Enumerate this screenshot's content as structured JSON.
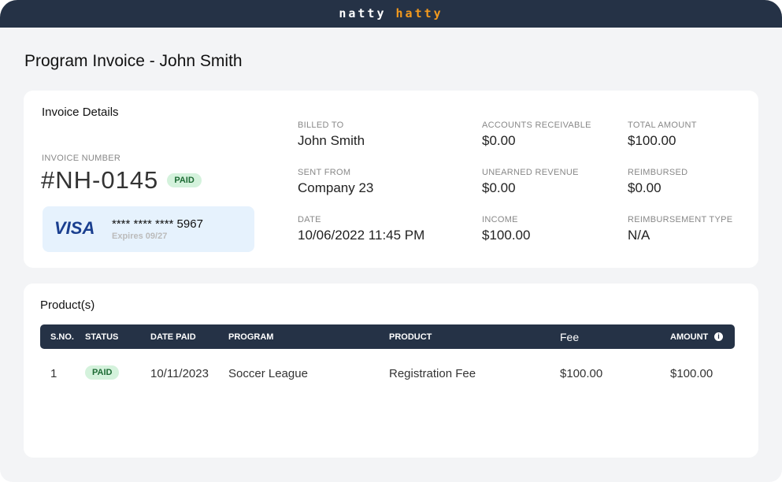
{
  "brand": {
    "part1": "natty",
    "part2": "hatty"
  },
  "title": "Program Invoice - John Smith",
  "details": {
    "heading": "Invoice Details",
    "invoice_number_label": "INVOICE NUMBER",
    "invoice_number": "#NH-0145",
    "status": "PAID",
    "card": {
      "brand": "VISA",
      "number": "**** **** **** 5967",
      "expires": "Expires 09/27"
    },
    "fields": [
      {
        "label": "BILLED TO",
        "value": "John Smith"
      },
      {
        "label": "SENT FROM",
        "value": "Company 23"
      },
      {
        "label": "DATE",
        "value": "10/06/2022 11:45 PM"
      },
      {
        "label": "ACCOUNTS RECEIVABLE",
        "value": "$0.00"
      },
      {
        "label": "UNEARNED REVENUE",
        "value": "$0.00"
      },
      {
        "label": "INCOME",
        "value": "$100.00"
      },
      {
        "label": "TOTAL AMOUNT",
        "value": "$100.00"
      },
      {
        "label": "REIMBURSED",
        "value": "$0.00"
      },
      {
        "label": "REIMBURSEMENT TYPE",
        "value": "N/A"
      }
    ]
  },
  "products": {
    "heading": "Product(s)",
    "columns": [
      "S.NO.",
      "STATUS",
      "DATE PAID",
      "PROGRAM",
      "PRODUCT",
      "Fee",
      "AMOUNT"
    ],
    "rows": [
      {
        "sno": "1",
        "status": "PAID",
        "date_paid": "10/11/2023",
        "program": "Soccer League",
        "product": "Registration Fee",
        "fee": "$100.00",
        "amount": "$100.00"
      }
    ]
  },
  "colors": {
    "header": "#253246",
    "accent": "#f39a1e",
    "paid_bg": "#d4f2dc",
    "paid_text": "#1d6b34"
  }
}
